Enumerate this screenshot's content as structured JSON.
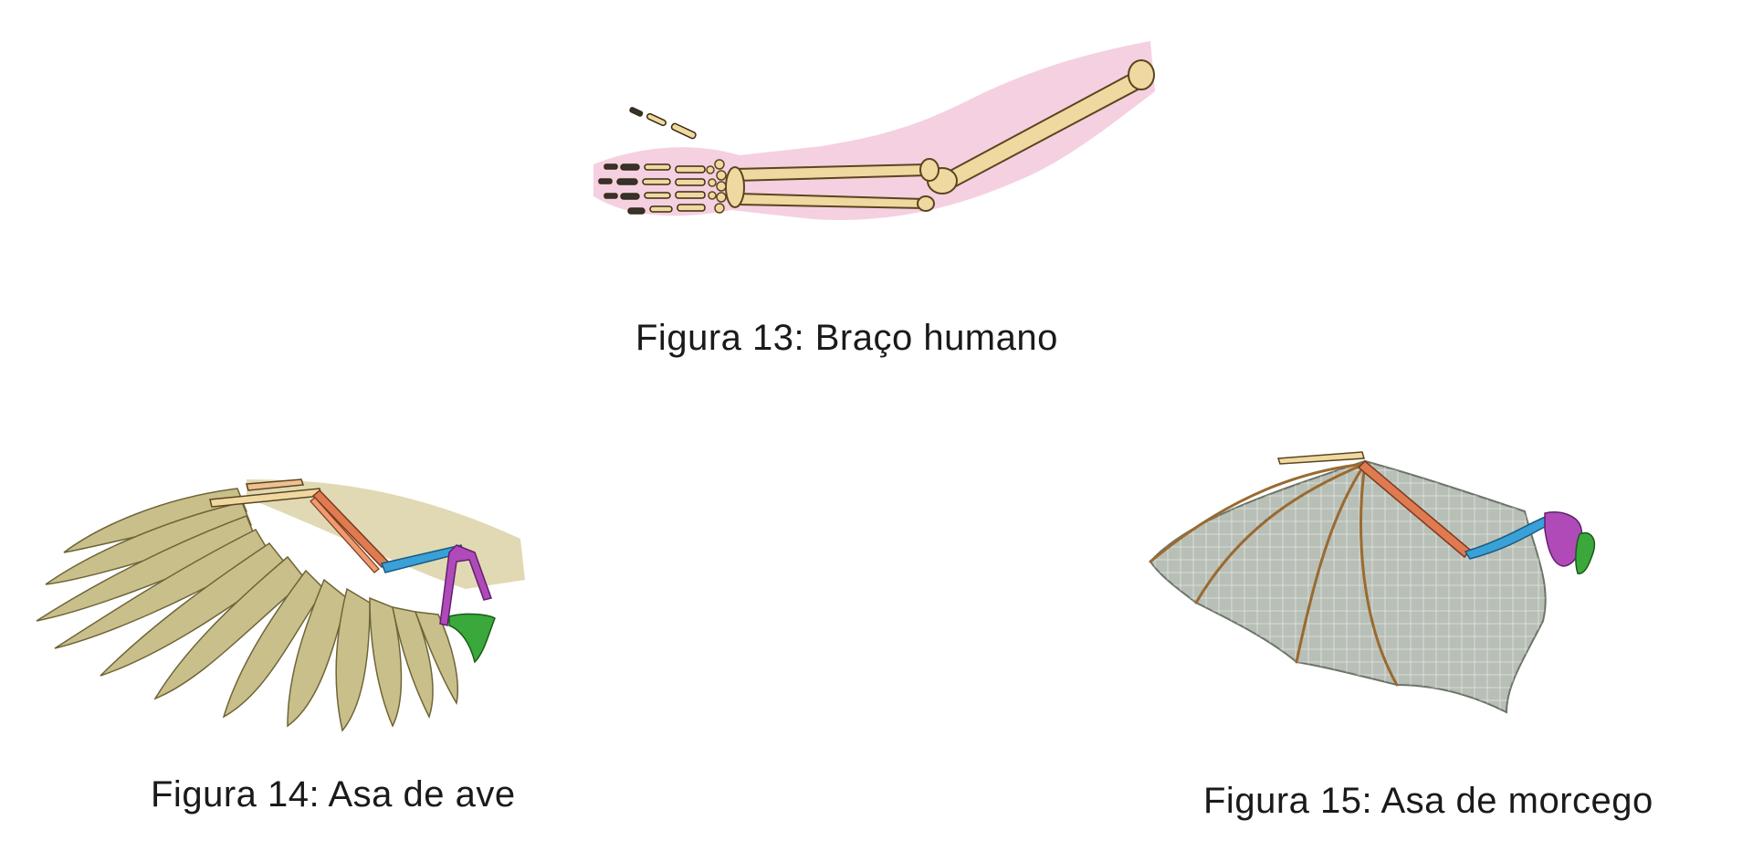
{
  "figures": [
    {
      "id": "fig13",
      "caption": "Figura 13: Braço humano"
    },
    {
      "id": "fig14",
      "caption": "Figura 14: Asa de ave"
    },
    {
      "id": "fig15",
      "caption": "Figura 15: Asa de morcego"
    }
  ],
  "colors": {
    "bone": "#f0d9a0",
    "bone_outline": "#5a4520",
    "skin": "#f3c8dc",
    "humerus": "#3aa0d8",
    "radius_ulna": "#e07a50",
    "shoulder_purple": "#b04ab8",
    "scapula_green": "#3aa83a",
    "feather": "#c9bf8a",
    "membrane": "#b8bfb6"
  },
  "icons": [
    "human-arm-illustration",
    "bird-wing-illustration",
    "bat-wing-illustration"
  ]
}
